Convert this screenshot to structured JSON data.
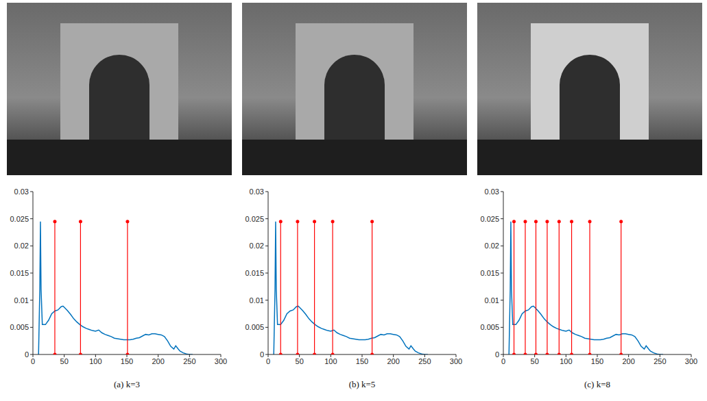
{
  "chart_data": [
    {
      "type": "line",
      "title": "(a) k=3",
      "xlim": [
        0,
        300
      ],
      "xticks": [
        0,
        50,
        100,
        150,
        200,
        250,
        300
      ],
      "ylim": [
        0,
        0.03
      ],
      "yticks": [
        0,
        0.005,
        0.01,
        0.015,
        0.02,
        0.025,
        0.03
      ],
      "grid": false,
      "x": [
        9,
        11,
        12,
        13,
        15,
        20,
        25,
        30,
        35,
        40,
        45,
        48,
        50,
        55,
        60,
        65,
        70,
        75,
        80,
        85,
        90,
        95,
        100,
        105,
        110,
        115,
        120,
        125,
        130,
        135,
        140,
        145,
        150,
        155,
        160,
        165,
        170,
        175,
        180,
        185,
        190,
        195,
        200,
        205,
        210,
        215,
        220,
        225,
        228,
        232,
        235,
        240,
        245,
        250,
        255
      ],
      "series": [
        {
          "type": "line",
          "color": "#0072bd",
          "values": [
            0,
            0.012,
            0.0245,
            0.012,
            0.0055,
            0.0055,
            0.0063,
            0.0075,
            0.008,
            0.0082,
            0.0088,
            0.0089,
            0.0087,
            0.0081,
            0.0074,
            0.0066,
            0.006,
            0.0055,
            0.0051,
            0.0048,
            0.0046,
            0.0044,
            0.0043,
            0.0045,
            0.004,
            0.0037,
            0.0035,
            0.0033,
            0.003,
            0.0029,
            0.0028,
            0.0027,
            0.0027,
            0.0027,
            0.0028,
            0.003,
            0.0031,
            0.0034,
            0.0037,
            0.0036,
            0.0038,
            0.0038,
            0.0037,
            0.0036,
            0.0033,
            0.0025,
            0.0015,
            0.001,
            0.0016,
            0.001,
            0.0006,
            0.0003,
            0.0001,
            0,
            0
          ]
        },
        {
          "type": "stem",
          "color": "#ff0000",
          "marker": "circle",
          "x": [
            35,
            76,
            151
          ],
          "values": [
            0.0245,
            0.0245,
            0.0245
          ]
        }
      ]
    },
    {
      "type": "line",
      "title": "(b) k=5",
      "xlim": [
        0,
        300
      ],
      "xticks": [
        0,
        50,
        100,
        150,
        200,
        250,
        300
      ],
      "ylim": [
        0,
        0.03
      ],
      "yticks": [
        0,
        0.005,
        0.01,
        0.015,
        0.02,
        0.025,
        0.03
      ],
      "grid": false,
      "x": [
        9,
        11,
        12,
        13,
        15,
        20,
        25,
        30,
        35,
        40,
        45,
        48,
        50,
        55,
        60,
        65,
        70,
        75,
        80,
        85,
        90,
        95,
        100,
        105,
        110,
        115,
        120,
        125,
        130,
        135,
        140,
        145,
        150,
        155,
        160,
        165,
        170,
        175,
        180,
        185,
        190,
        195,
        200,
        205,
        210,
        215,
        220,
        225,
        228,
        232,
        235,
        240,
        245,
        250,
        255
      ],
      "series": [
        {
          "type": "line",
          "color": "#0072bd",
          "values": [
            0,
            0.012,
            0.0245,
            0.012,
            0.0055,
            0.0055,
            0.0063,
            0.0075,
            0.008,
            0.0082,
            0.0088,
            0.0089,
            0.0087,
            0.0081,
            0.0074,
            0.0066,
            0.006,
            0.0055,
            0.0051,
            0.0048,
            0.0046,
            0.0044,
            0.0043,
            0.0045,
            0.004,
            0.0037,
            0.0035,
            0.0033,
            0.003,
            0.0029,
            0.0028,
            0.0027,
            0.0027,
            0.0027,
            0.0028,
            0.003,
            0.0031,
            0.0034,
            0.0037,
            0.0036,
            0.0038,
            0.0038,
            0.0037,
            0.0036,
            0.0033,
            0.0025,
            0.0015,
            0.001,
            0.0016,
            0.001,
            0.0006,
            0.0003,
            0.0001,
            0,
            0
          ]
        },
        {
          "type": "stem",
          "color": "#ff0000",
          "marker": "circle",
          "x": [
            20,
            47,
            74,
            103,
            166
          ],
          "values": [
            0.0245,
            0.0245,
            0.0245,
            0.0245,
            0.0245
          ]
        }
      ]
    },
    {
      "type": "line",
      "title": "(c) k=8",
      "xlim": [
        0,
        300
      ],
      "xticks": [
        0,
        50,
        100,
        150,
        200,
        250,
        300
      ],
      "ylim": [
        0,
        0.03
      ],
      "yticks": [
        0,
        0.005,
        0.01,
        0.015,
        0.02,
        0.025,
        0.03
      ],
      "grid": false,
      "x": [
        9,
        11,
        12,
        13,
        15,
        20,
        25,
        30,
        35,
        40,
        45,
        48,
        50,
        55,
        60,
        65,
        70,
        75,
        80,
        85,
        90,
        95,
        100,
        105,
        110,
        115,
        120,
        125,
        130,
        135,
        140,
        145,
        150,
        155,
        160,
        165,
        170,
        175,
        180,
        185,
        190,
        195,
        200,
        205,
        210,
        215,
        220,
        225,
        228,
        232,
        235,
        240,
        245,
        250,
        255
      ],
      "series": [
        {
          "type": "line",
          "color": "#0072bd",
          "values": [
            0,
            0.012,
            0.0245,
            0.012,
            0.0055,
            0.0055,
            0.0063,
            0.0075,
            0.008,
            0.0082,
            0.0088,
            0.0089,
            0.0087,
            0.0081,
            0.0074,
            0.0066,
            0.006,
            0.0055,
            0.0051,
            0.0048,
            0.0046,
            0.0044,
            0.0043,
            0.0045,
            0.004,
            0.0037,
            0.0035,
            0.0033,
            0.003,
            0.0029,
            0.0028,
            0.0027,
            0.0027,
            0.0027,
            0.0028,
            0.003,
            0.0031,
            0.0034,
            0.0037,
            0.0036,
            0.0038,
            0.0038,
            0.0037,
            0.0036,
            0.0033,
            0.0025,
            0.0015,
            0.001,
            0.0016,
            0.001,
            0.0006,
            0.0003,
            0.0001,
            0,
            0
          ]
        },
        {
          "type": "stem",
          "color": "#ff0000",
          "marker": "circle",
          "x": [
            17,
            35,
            52,
            70,
            89,
            109,
            138,
            188
          ],
          "values": [
            0.0245,
            0.0245,
            0.0245,
            0.0245,
            0.0245,
            0.0245,
            0.0245,
            0.0245
          ]
        }
      ]
    }
  ]
}
